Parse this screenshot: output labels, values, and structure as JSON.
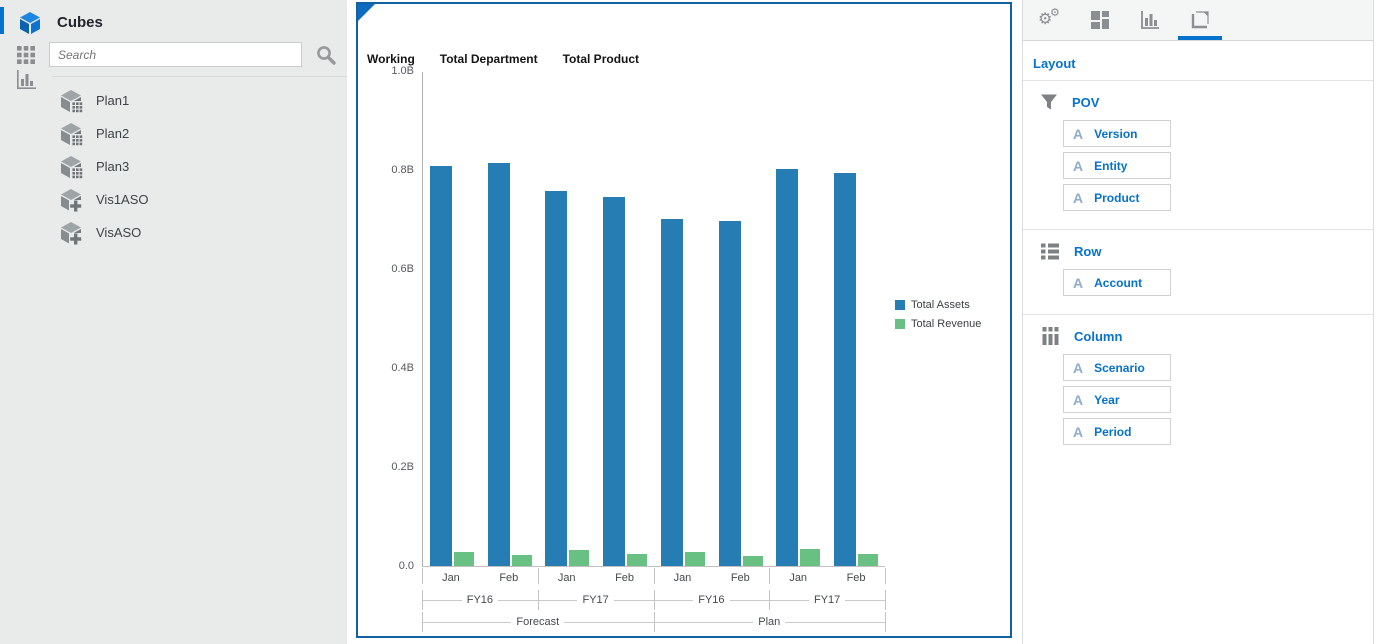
{
  "sidebar": {
    "title": "Cubes",
    "search": {
      "placeholder": "Search"
    },
    "items": [
      {
        "label": "Plan1",
        "icon": "cube-grid-icon"
      },
      {
        "label": "Plan2",
        "icon": "cube-grid-icon"
      },
      {
        "label": "Plan3",
        "icon": "cube-grid-icon"
      },
      {
        "label": "Vis1ASO",
        "icon": "cube-plus-icon"
      },
      {
        "label": "VisASO",
        "icon": "cube-plus-icon"
      }
    ]
  },
  "chart_panel": {
    "pov_headers": [
      "Working",
      "Total Department",
      "Total Product"
    ]
  },
  "chart_data": {
    "type": "bar",
    "title": "",
    "x_levels": [
      {
        "name": "Period",
        "labels": [
          "Jan",
          "Feb",
          "Jan",
          "Feb",
          "Jan",
          "Feb",
          "Jan",
          "Feb"
        ]
      },
      {
        "name": "Year",
        "labels": [
          "FY16",
          "FY17",
          "FY16",
          "FY17"
        ]
      },
      {
        "name": "Scenario",
        "labels": [
          "Forecast",
          "Plan"
        ]
      }
    ],
    "series": [
      {
        "name": "Total Assets",
        "color": "#267db3",
        "values": [
          0.81,
          0.816,
          0.76,
          0.748,
          0.703,
          0.699,
          0.803,
          0.795
        ]
      },
      {
        "name": "Total Revenue",
        "color": "#68c182",
        "values": [
          0.028,
          0.022,
          0.033,
          0.024,
          0.028,
          0.02,
          0.035,
          0.025
        ]
      }
    ],
    "unit": "B",
    "ylim": [
      0,
      1.0
    ],
    "yticks": [
      {
        "value": 1.0,
        "label": "1.0B"
      },
      {
        "value": 0.8,
        "label": "0.8B"
      },
      {
        "value": 0.6,
        "label": "0.6B"
      },
      {
        "value": 0.4,
        "label": "0.4B"
      },
      {
        "value": 0.2,
        "label": "0.2B"
      },
      {
        "value": 0.0,
        "label": "0.0"
      }
    ],
    "legend_position": "right",
    "grid": false
  },
  "layout_panel": {
    "tabs": [
      {
        "name": "settings",
        "icon": "gears-icon",
        "selected": false
      },
      {
        "name": "visualizations",
        "icon": "blocks-icon",
        "selected": false
      },
      {
        "name": "chart",
        "icon": "bar-chart-icon",
        "selected": false
      },
      {
        "name": "layout",
        "icon": "layout-icon",
        "selected": true
      }
    ],
    "title": "Layout",
    "sections": [
      {
        "label": "POV",
        "icon": "filter-icon",
        "chips": [
          {
            "label": "Version",
            "glyph": "A"
          },
          {
            "label": "Entity",
            "glyph": "A"
          },
          {
            "label": "Product",
            "glyph": "A"
          }
        ]
      },
      {
        "label": "Row",
        "icon": "rows-icon",
        "chips": [
          {
            "label": "Account",
            "glyph": "A"
          }
        ]
      },
      {
        "label": "Column",
        "icon": "columns-icon",
        "chips": [
          {
            "label": "Scenario",
            "glyph": "A"
          },
          {
            "label": "Year",
            "glyph": "A"
          },
          {
            "label": "Period",
            "glyph": "A"
          }
        ]
      }
    ]
  },
  "colors": {
    "accent": "#0572ce",
    "panel_border": "#1261a0",
    "bar_blue": "#267db3",
    "bar_green": "#68c182"
  }
}
